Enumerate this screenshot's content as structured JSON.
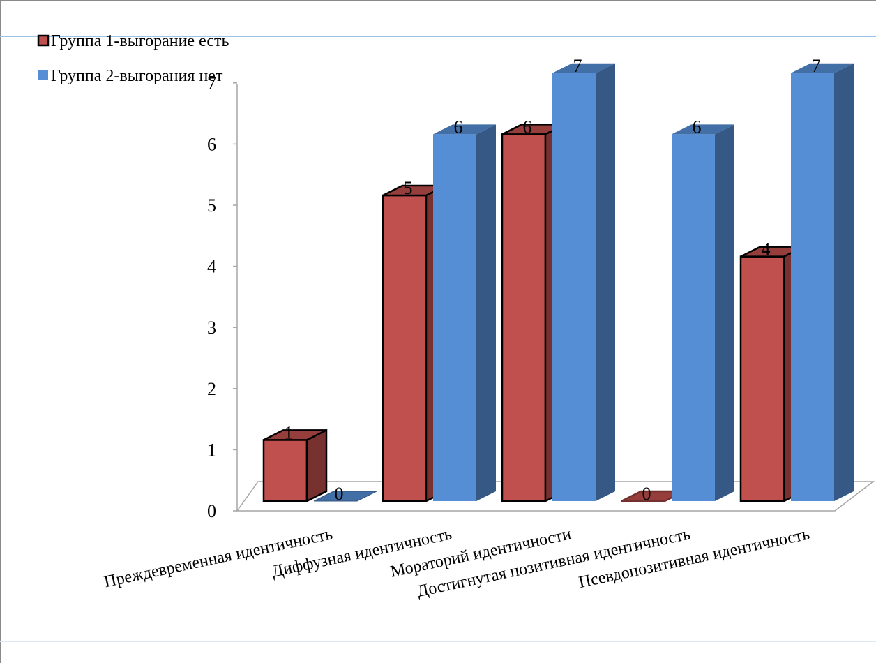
{
  "chart_data": {
    "type": "bar",
    "categories": [
      "Преждевременная идентичность",
      "Диффузная идентичность",
      "Мораторий идентичности",
      "Достигнутая позитивная идентичность",
      "Псевдопозитивная идентичность"
    ],
    "series": [
      {
        "name": "Группа 1-выгорание есть",
        "values": [
          1,
          5,
          6,
          0,
          4
        ],
        "color": "#c0504d"
      },
      {
        "name": "Группа 2-выгорания нет",
        "values": [
          0,
          6,
          7,
          6,
          7
        ],
        "color": "#558ed5"
      }
    ],
    "yticks": [
      "0",
      "1",
      "2",
      "3",
      "4",
      "5",
      "6",
      "7"
    ],
    "ylim": [
      0,
      7
    ],
    "style": "3d-clustered-column",
    "legend": "top-left",
    "grid": false
  }
}
